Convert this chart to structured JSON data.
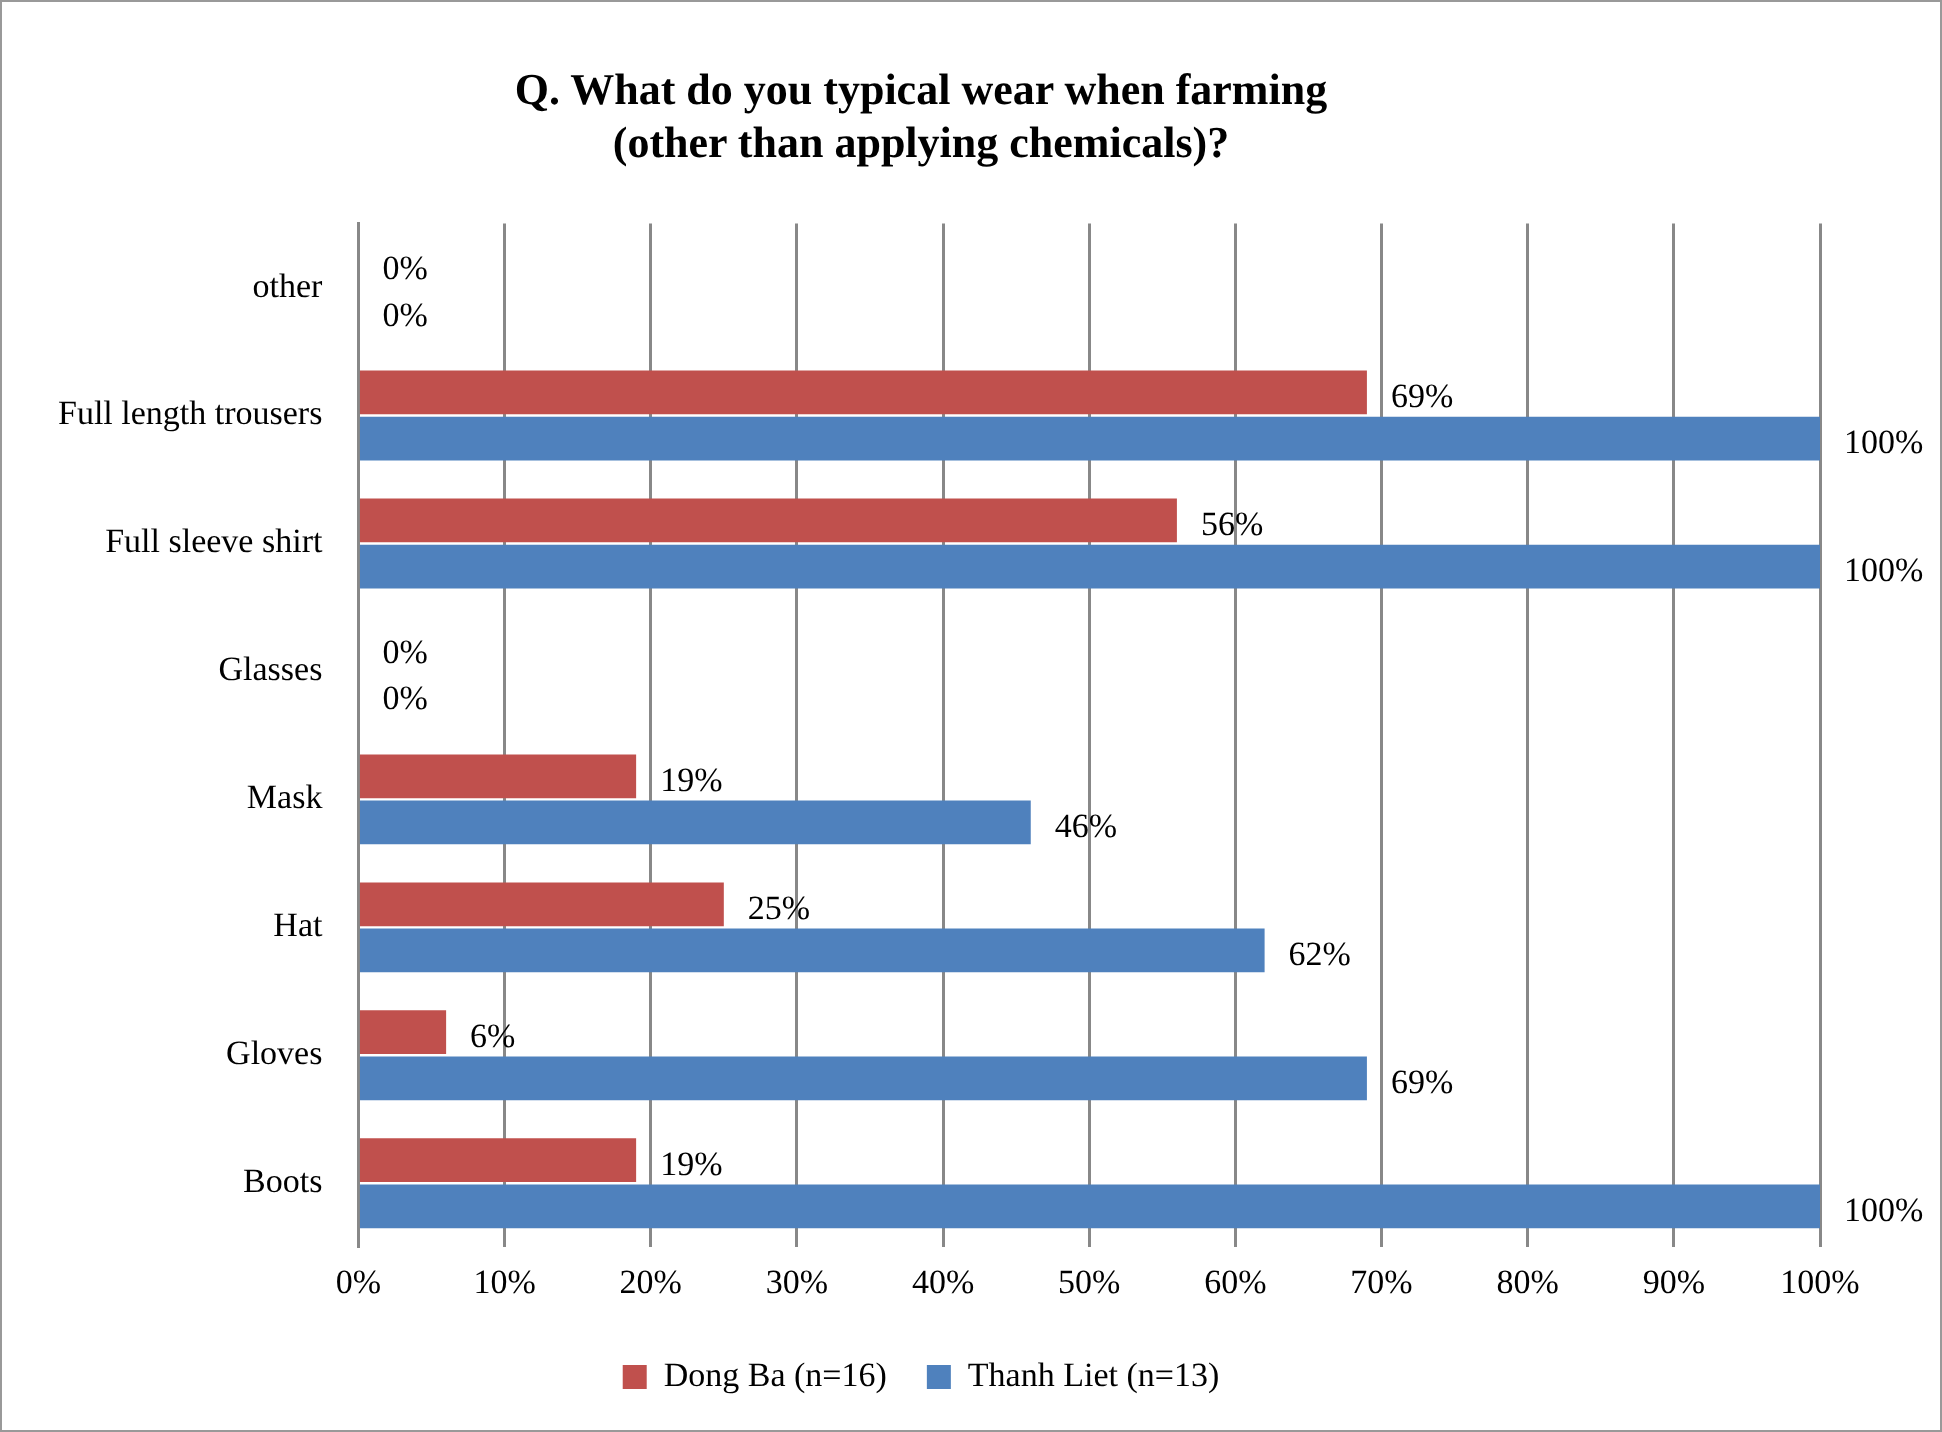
{
  "chart_data": {
    "type": "bar",
    "orientation": "horizontal",
    "title": "Q. What do you typical wear when farming\n(other than applying chemicals)?",
    "categories": [
      "other",
      "Full length trousers",
      "Full sleeve shirt",
      "Glasses",
      "Mask",
      "Hat",
      "Gloves",
      "Boots"
    ],
    "series": [
      {
        "name": "Dong Ba (n=16)",
        "color": "#c0504d",
        "values": [
          0,
          69,
          56,
          0,
          19,
          25,
          6,
          19
        ],
        "value_labels": [
          "0%",
          "69%",
          "56%",
          "0%",
          "19%",
          "25%",
          "6%",
          "19%"
        ]
      },
      {
        "name": "Thanh Liet (n=13)",
        "color": "#4f81bd",
        "values": [
          0,
          100,
          100,
          0,
          46,
          62,
          69,
          100
        ],
        "value_labels": [
          "0%",
          "100%",
          "100%",
          "0%",
          "46%",
          "62%",
          "69%",
          "100%"
        ]
      }
    ],
    "xlim": [
      0,
      100
    ],
    "xticks": [
      {
        "value": 0,
        "label": "0%"
      },
      {
        "value": 10,
        "label": "10%"
      },
      {
        "value": 20,
        "label": "20%"
      },
      {
        "value": 30,
        "label": "30%"
      },
      {
        "value": 40,
        "label": "40%"
      },
      {
        "value": 50,
        "label": "50%"
      },
      {
        "value": 60,
        "label": "60%"
      },
      {
        "value": 70,
        "label": "70%"
      },
      {
        "value": 80,
        "label": "80%"
      },
      {
        "value": 90,
        "label": "90%"
      },
      {
        "value": 100,
        "label": "100%"
      }
    ],
    "grid": "x",
    "legend": "bottom"
  }
}
